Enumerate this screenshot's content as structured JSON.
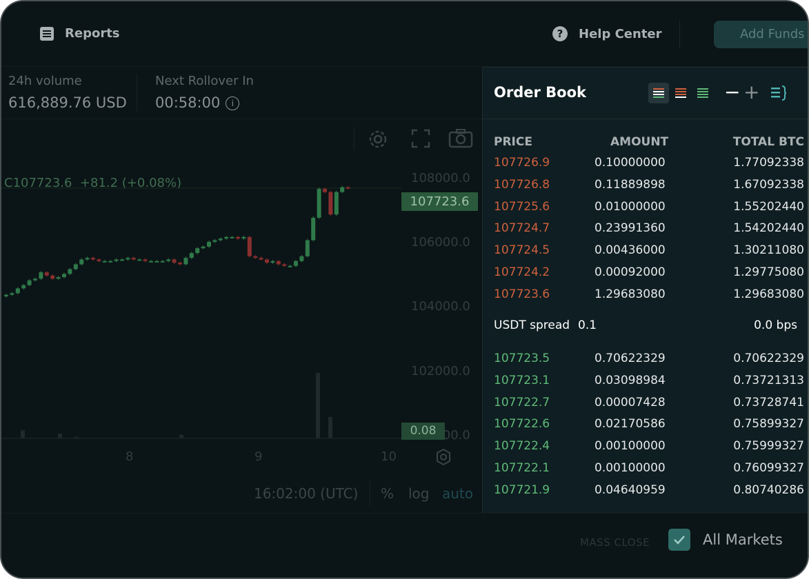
{
  "topbar": {
    "reports_label": "Reports",
    "help_label": "Help Center",
    "add_funds_label": "Add Funds"
  },
  "stats": {
    "volume_label": "24h volume",
    "volume_value": "616,889.76 USD",
    "rollover_label": "Next Rollover In",
    "rollover_value": "00:58:00",
    "info_glyph": "i"
  },
  "chart": {
    "legend_prefix": "C",
    "legend_price": "107723.6",
    "legend_change": "+81.2 (+0.08%)",
    "price_badge": "107723.6",
    "volume_badge": "0.08",
    "y_ticks": [
      {
        "label": "108000.0",
        "value": 108000
      },
      {
        "label": "106000.0",
        "value": 106000
      },
      {
        "label": "104000.0",
        "value": 104000
      },
      {
        "label": "102000.0",
        "value": 102000
      },
      {
        "label": "100000.0",
        "value": 100000
      }
    ],
    "x_ticks": [
      "8",
      "9",
      "10"
    ],
    "footer": {
      "time": "16:02:00 (UTC)",
      "percent": "%",
      "log": "log",
      "auto": "auto"
    },
    "icons": [
      "settings-icon",
      "fullscreen-icon",
      "camera-icon"
    ],
    "colors": {
      "up": "#2f7a4a",
      "down": "#8a2f2f",
      "badge": "#2a5a3b"
    }
  },
  "chart_data": {
    "type": "candlestick",
    "last_price": 107723.6,
    "x_tick_labels": [
      "8",
      "9",
      "10"
    ],
    "y_tick_labels": [
      "108000.0",
      "106000.0",
      "104000.0",
      "102000.0",
      "100000.0"
    ],
    "ylim": [
      99800,
      108600
    ],
    "closes": [
      104400,
      104450,
      104600,
      104700,
      104850,
      104900,
      105100,
      105000,
      104900,
      104950,
      105050,
      105200,
      105350,
      105500,
      105550,
      105500,
      105450,
      105450,
      105450,
      105500,
      105500,
      105550,
      105500,
      105500,
      105450,
      105450,
      105450,
      105450,
      105500,
      105400,
      105350,
      105550,
      105700,
      105850,
      105900,
      106050,
      106100,
      106150,
      106200,
      106200,
      106150,
      106200,
      105600,
      105550,
      105500,
      105400,
      105450,
      105350,
      105300,
      105300,
      105450,
      105600,
      106100,
      106800,
      107700,
      107600,
      106900,
      107600,
      107750,
      107723.6
    ],
    "volume_spikes": [
      0.08,
      0.05,
      0.02,
      0.04,
      0.6,
      0.2
    ]
  },
  "orderbook": {
    "title": "Order Book",
    "minus": "−",
    "plus": "+",
    "columns": {
      "price": "PRICE",
      "amount": "AMOUNT",
      "total": "TOTAL BTC"
    },
    "asks": [
      {
        "price": "107726.9",
        "amount": "0.10000000",
        "total": "1.77092338"
      },
      {
        "price": "107726.8",
        "amount": "0.11889898",
        "total": "1.67092338"
      },
      {
        "price": "107725.6",
        "amount": "0.01000000",
        "total": "1.55202440"
      },
      {
        "price": "107724.7",
        "amount": "0.23991360",
        "total": "1.54202440"
      },
      {
        "price": "107724.5",
        "amount": "0.00436000",
        "total": "1.30211080"
      },
      {
        "price": "107724.2",
        "amount": "0.00092000",
        "total": "1.29775080"
      },
      {
        "price": "107723.6",
        "amount": "1.29683080",
        "total": "1.29683080"
      }
    ],
    "spread_label": "USDT spread",
    "spread_value": "0.1",
    "spread_bps": "0.0 bps",
    "bids": [
      {
        "price": "107723.5",
        "amount": "0.70622329",
        "total": "0.70622329"
      },
      {
        "price": "107723.1",
        "amount": "0.03098984",
        "total": "0.73721313"
      },
      {
        "price": "107722.7",
        "amount": "0.00007428",
        "total": "0.73728741"
      },
      {
        "price": "107722.6",
        "amount": "0.02170586",
        "total": "0.75899327"
      },
      {
        "price": "107722.4",
        "amount": "0.00100000",
        "total": "0.75999327"
      },
      {
        "price": "107722.1",
        "amount": "0.00100000",
        "total": "0.76099327"
      },
      {
        "price": "107721.9",
        "amount": "0.04640959",
        "total": "0.80740286"
      }
    ],
    "colors": {
      "ask": "#d0613e",
      "bid": "#5fbb78"
    }
  },
  "bottombar": {
    "mass_close": "MASS CLOSE",
    "all_markets": "All Markets",
    "checkbox_checked": true
  }
}
